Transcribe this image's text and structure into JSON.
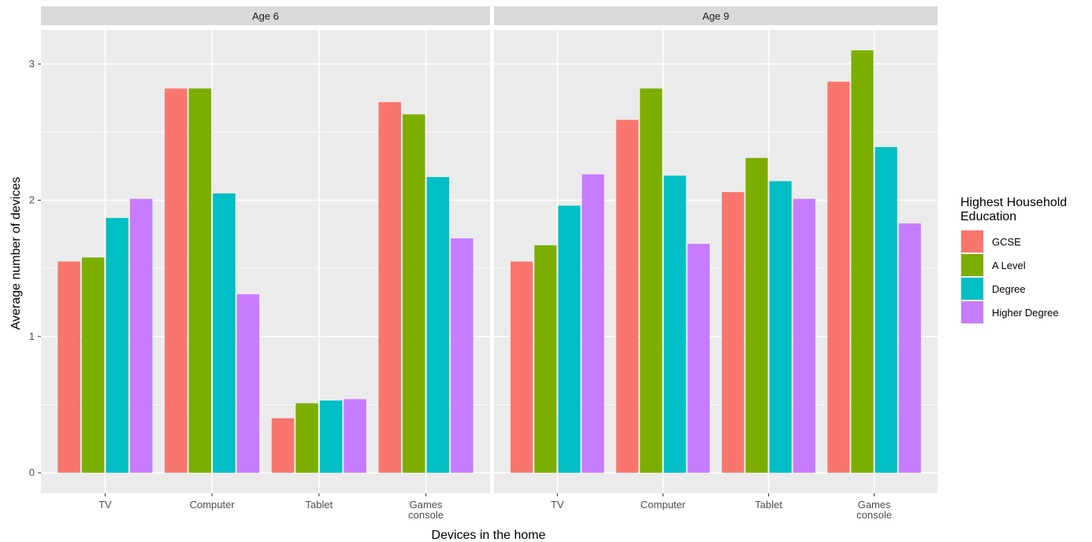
{
  "chart_data": {
    "type": "bar",
    "facet_labels": [
      "Age 6",
      "Age 9"
    ],
    "categories": [
      [
        "TV"
      ],
      [
        "Computer"
      ],
      [
        "Tablet"
      ],
      [
        "Games",
        "console"
      ]
    ],
    "xlabel": "Devices in the home",
    "ylabel": "Average number of devices",
    "ylim": [
      -0.15,
      3.25
    ],
    "yticks": [
      0,
      1,
      2,
      3
    ],
    "grid": true,
    "legend": {
      "title": [
        "Highest Household",
        "Education"
      ],
      "placement": "right",
      "entries": [
        "GCSE",
        "A Level",
        "Degree",
        "Higher Degree"
      ]
    },
    "colors": [
      "#F8766D",
      "#7CAE00",
      "#00BFC4",
      "#C77CFF"
    ],
    "facets": [
      {
        "label": "Age 6",
        "series": [
          {
            "name": "GCSE",
            "values": [
              1.55,
              2.82,
              0.4,
              2.72
            ]
          },
          {
            "name": "A Level",
            "values": [
              1.58,
              2.82,
              0.51,
              2.63
            ]
          },
          {
            "name": "Degree",
            "values": [
              1.87,
              2.05,
              0.53,
              2.17
            ]
          },
          {
            "name": "Higher Degree",
            "values": [
              2.01,
              1.31,
              0.54,
              1.72
            ]
          }
        ]
      },
      {
        "label": "Age 9",
        "series": [
          {
            "name": "GCSE",
            "values": [
              1.55,
              2.59,
              2.06,
              2.87
            ]
          },
          {
            "name": "A Level",
            "values": [
              1.67,
              2.82,
              2.31,
              3.1
            ]
          },
          {
            "name": "Degree",
            "values": [
              1.96,
              2.18,
              2.14,
              2.39
            ]
          },
          {
            "name": "Higher Degree",
            "values": [
              2.19,
              1.68,
              2.01,
              1.83
            ]
          }
        ]
      }
    ]
  }
}
